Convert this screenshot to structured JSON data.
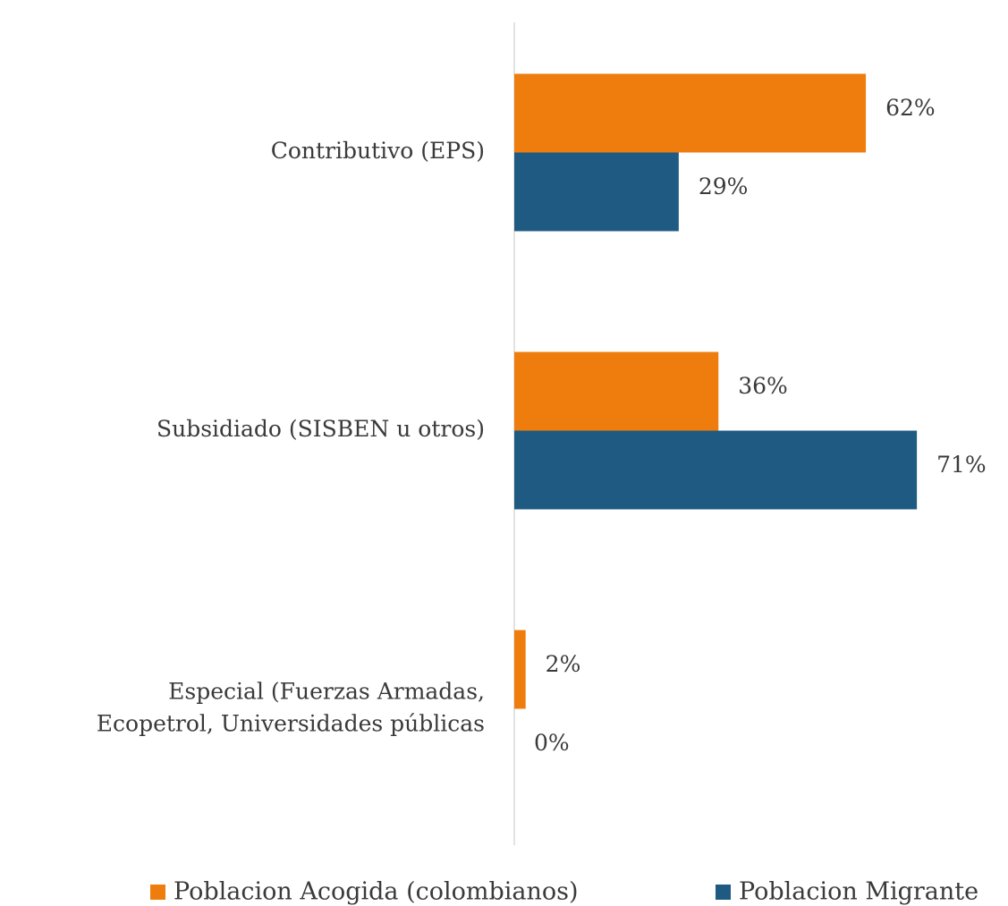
{
  "chart_data": {
    "type": "bar",
    "orientation": "horizontal",
    "categories": [
      "Contributivo (EPS)",
      "Subsidiado (SISBEN u otros)",
      "Especial (Fuerzas Armadas,\nEcopetrol, Universidades públicas"
    ],
    "series": [
      {
        "name": "Poblacion Acogida (colombianos)",
        "color": "#ee7d0e",
        "values": [
          62,
          36,
          2
        ],
        "value_labels": [
          "62%",
          "36%",
          "2%"
        ]
      },
      {
        "name": "Poblacion Migrante",
        "color": "#1f5a82",
        "values": [
          29,
          71,
          0
        ],
        "value_labels": [
          "29%",
          "71%",
          "0%"
        ]
      }
    ],
    "legend": "bottom"
  }
}
